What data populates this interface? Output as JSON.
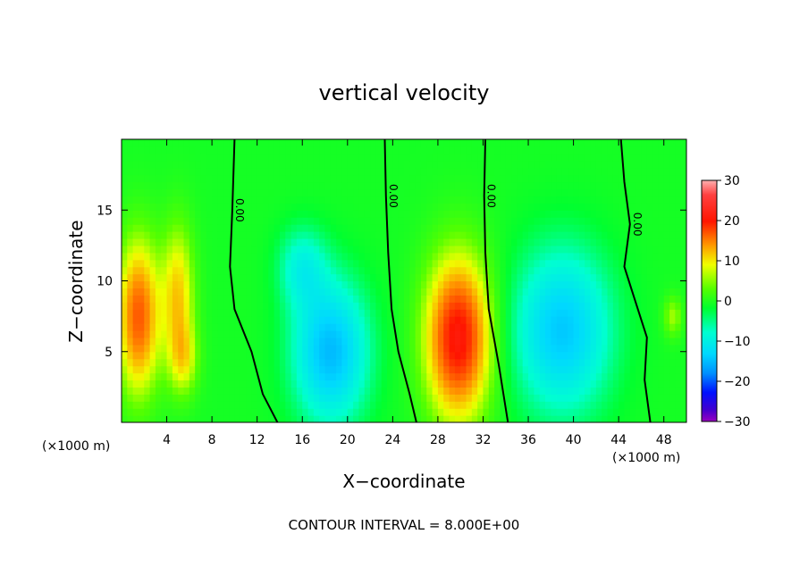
{
  "chart_data": {
    "type": "heatmap",
    "title": "vertical velocity",
    "xlabel": "X−coordinate",
    "ylabel": "Z−coordinate",
    "x_unit_left": "(×1000 m)",
    "x_unit_right": "(×1000 m)",
    "footer": "CONTOUR INTERVAL = 8.000E+00",
    "xlim": [
      0,
      50
    ],
    "ylim": [
      0,
      20
    ],
    "x_ticks": [
      4,
      8,
      12,
      16,
      20,
      24,
      28,
      32,
      36,
      40,
      44,
      48
    ],
    "x_tick_labels": [
      "4",
      "8",
      "12",
      "16",
      "20",
      "24",
      "28",
      "32",
      "36",
      "40",
      "44",
      "48"
    ],
    "y_ticks": [
      5,
      10,
      15
    ],
    "y_tick_labels": [
      "5",
      "10",
      "15"
    ],
    "colorbar": {
      "range": [
        -30,
        30
      ],
      "ticks": [
        30,
        20,
        10,
        0,
        -10,
        -20,
        -30
      ],
      "tick_labels": [
        "30",
        "20",
        "10",
        "0",
        "−10",
        "−20",
        "−30"
      ]
    },
    "contour_interval": 8.0,
    "zero_contour_label": "0.00",
    "zero_contours": [
      {
        "name": "zero-1",
        "points": [
          [
            10.0,
            20
          ],
          [
            9.8,
            15
          ],
          [
            9.6,
            11
          ],
          [
            10.0,
            8
          ],
          [
            11.5,
            5
          ],
          [
            12.5,
            2
          ],
          [
            13.8,
            0
          ]
        ]
      },
      {
        "name": "zero-2",
        "points": [
          [
            23.3,
            20
          ],
          [
            23.4,
            16
          ],
          [
            23.6,
            12
          ],
          [
            23.9,
            8
          ],
          [
            24.5,
            5
          ],
          [
            25.5,
            2
          ],
          [
            26.1,
            0
          ]
        ]
      },
      {
        "name": "zero-3",
        "points": [
          [
            32.2,
            20
          ],
          [
            32.1,
            16
          ],
          [
            32.2,
            12
          ],
          [
            32.5,
            8
          ],
          [
            33.4,
            4
          ],
          [
            34.2,
            0
          ]
        ]
      },
      {
        "name": "zero-4",
        "points": [
          [
            44.2,
            20
          ],
          [
            44.5,
            17
          ],
          [
            45.0,
            14
          ],
          [
            44.5,
            11
          ],
          [
            45.3,
            9
          ],
          [
            46.5,
            6
          ],
          [
            46.3,
            3
          ],
          [
            46.8,
            0
          ]
        ]
      }
    ],
    "field_peaks": [
      {
        "x": 1.5,
        "z": 7.5,
        "w": 14,
        "sx": 1.3,
        "sz": 3.8
      },
      {
        "x": 5.0,
        "z": 9.0,
        "w": 9,
        "sx": 1.0,
        "sz": 3.5
      },
      {
        "x": 5.5,
        "z": 4.5,
        "w": 6,
        "sx": 0.9,
        "sz": 1.8
      },
      {
        "x": 18.5,
        "z": 5.0,
        "w": -12,
        "sx": 2.3,
        "sz": 3.5
      },
      {
        "x": 16.0,
        "z": 11.0,
        "w": -6,
        "sx": 1.5,
        "sz": 2.0
      },
      {
        "x": 29.8,
        "z": 6.0,
        "w": 18,
        "sx": 2.0,
        "sz": 4.0
      },
      {
        "x": 39.0,
        "z": 6.5,
        "w": -11,
        "sx": 3.0,
        "sz": 4.0
      },
      {
        "x": 48.8,
        "z": 7.5,
        "w": 5,
        "sx": 0.6,
        "sz": 1.0
      }
    ]
  }
}
